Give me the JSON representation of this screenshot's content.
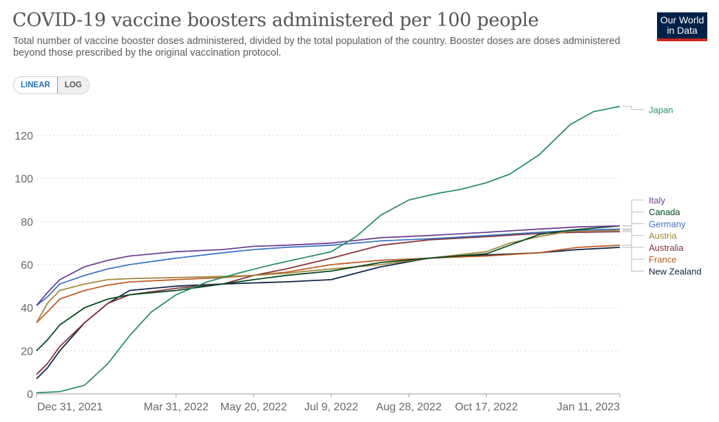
{
  "header": {
    "title": "COVID-19 vaccine boosters administered per 100 people",
    "subtitle": "Total number of vaccine booster doses administered, divided by the total population of the country. Booster doses are doses administered beyond those prescribed by the original vaccination protocol.",
    "logo_line1": "Our World",
    "logo_line2": "in Data"
  },
  "scale_toggle": {
    "linear_label": "LINEAR",
    "log_label": "LOG",
    "selected": "LINEAR"
  },
  "chart_data": {
    "type": "line",
    "title": "COVID-19 vaccine boosters administered per 100 people",
    "xlabel": "",
    "ylabel": "",
    "ylim": [
      0,
      135
    ],
    "xlim": [
      "2021-12-31",
      "2023-01-11"
    ],
    "y_ticks": [
      0,
      20,
      40,
      60,
      80,
      100,
      120
    ],
    "x_ticks": [
      {
        "date": "2021-12-31",
        "label": "Dec 31, 2021"
      },
      {
        "date": "2022-03-31",
        "label": "Mar 31, 2022"
      },
      {
        "date": "2022-05-20",
        "label": "May 20, 2022"
      },
      {
        "date": "2022-07-09",
        "label": "Jul 9, 2022"
      },
      {
        "date": "2022-08-28",
        "label": "Aug 28, 2022"
      },
      {
        "date": "2022-10-17",
        "label": "Oct 17, 2022"
      },
      {
        "date": "2023-01-11",
        "label": "Jan 11, 2023"
      }
    ],
    "grid": "horizontal dashed",
    "legend": "right, labels at line ends",
    "series": [
      {
        "name": "Japan",
        "color": "#2a8c6a",
        "label_y": 132,
        "x": [
          "2021-12-31",
          "2022-01-15",
          "2022-01-31",
          "2022-02-15",
          "2022-03-01",
          "2022-03-15",
          "2022-03-31",
          "2022-04-20",
          "2022-05-10",
          "2022-06-01",
          "2022-06-20",
          "2022-07-09",
          "2022-07-25",
          "2022-08-10",
          "2022-08-28",
          "2022-09-15",
          "2022-10-01",
          "2022-10-17",
          "2022-11-01",
          "2022-11-20",
          "2022-12-10",
          "2022-12-25",
          "2023-01-11"
        ],
        "y": [
          0.5,
          1,
          4,
          14,
          27,
          38,
          46,
          52,
          56,
          60,
          63,
          66,
          73,
          83,
          90,
          93,
          95,
          98,
          102,
          111,
          125,
          131,
          133.5
        ]
      },
      {
        "name": "Italy",
        "color": "#6d3e91",
        "label_y": 90,
        "x": [
          "2021-12-31",
          "2022-01-07",
          "2022-01-15",
          "2022-01-31",
          "2022-02-15",
          "2022-03-01",
          "2022-03-31",
          "2022-04-30",
          "2022-05-20",
          "2022-06-10",
          "2022-07-09",
          "2022-08-10",
          "2022-09-10",
          "2022-10-17",
          "2022-11-20",
          "2022-12-15",
          "2023-01-11"
        ],
        "y": [
          41,
          47,
          53,
          59,
          62,
          64,
          66,
          67,
          68.5,
          69,
          70,
          72.5,
          73.5,
          75,
          76.5,
          77.5,
          78
        ]
      },
      {
        "name": "Canada",
        "color": "#00491f",
        "label_y": 84.5,
        "x": [
          "2021-12-31",
          "2022-01-07",
          "2022-01-15",
          "2022-01-31",
          "2022-02-15",
          "2022-03-01",
          "2022-03-31",
          "2022-04-30",
          "2022-05-20",
          "2022-06-10",
          "2022-07-09",
          "2022-08-10",
          "2022-09-10",
          "2022-10-17",
          "2022-11-01",
          "2022-11-20",
          "2022-12-10",
          "2023-01-11"
        ],
        "y": [
          20,
          25,
          32,
          40,
          44,
          46,
          48,
          51,
          53,
          55,
          57,
          61,
          63,
          65,
          69,
          74,
          76,
          78
        ]
      },
      {
        "name": "Germany",
        "color": "#3a75c4",
        "label_y": 79,
        "x": [
          "2021-12-31",
          "2022-01-07",
          "2022-01-15",
          "2022-01-31",
          "2022-02-15",
          "2022-03-01",
          "2022-03-31",
          "2022-04-30",
          "2022-05-20",
          "2022-06-10",
          "2022-07-09",
          "2022-08-10",
          "2022-09-10",
          "2022-10-17",
          "2022-11-20",
          "2022-12-15",
          "2023-01-11"
        ],
        "y": [
          41,
          45,
          51,
          55,
          58,
          60,
          63,
          65.5,
          67,
          68,
          69,
          71,
          72,
          73.5,
          75,
          76,
          76.5
        ]
      },
      {
        "name": "Austria",
        "color": "#a2853b",
        "label_y": 73.5,
        "x": [
          "2021-12-31",
          "2022-01-07",
          "2022-01-15",
          "2022-01-31",
          "2022-02-15",
          "2022-03-01",
          "2022-03-31",
          "2022-04-30",
          "2022-05-20",
          "2022-06-10",
          "2022-07-09",
          "2022-08-10",
          "2022-09-10",
          "2022-10-17",
          "2022-11-01",
          "2022-11-20",
          "2022-12-10",
          "2023-01-11"
        ],
        "y": [
          33,
          42,
          48,
          51,
          53,
          53.5,
          54,
          54.5,
          55,
          56,
          58,
          60,
          63,
          66,
          70,
          73,
          75.5,
          76
        ]
      },
      {
        "name": "Australia",
        "color": "#883039",
        "label_y": 68,
        "x": [
          "2021-12-31",
          "2022-01-07",
          "2022-01-15",
          "2022-01-31",
          "2022-02-15",
          "2022-03-01",
          "2022-03-31",
          "2022-04-30",
          "2022-05-20",
          "2022-06-10",
          "2022-07-09",
          "2022-08-10",
          "2022-09-10",
          "2022-10-17",
          "2022-11-20",
          "2022-12-15",
          "2023-01-11"
        ],
        "y": [
          9,
          14,
          22,
          33,
          42,
          46,
          49,
          51,
          55,
          58,
          63,
          69,
          71.5,
          73,
          74.5,
          75,
          75.3
        ]
      },
      {
        "name": "France",
        "color": "#c15b24",
        "label_y": 62.5,
        "x": [
          "2021-12-31",
          "2022-01-07",
          "2022-01-15",
          "2022-01-31",
          "2022-02-15",
          "2022-03-01",
          "2022-03-31",
          "2022-04-30",
          "2022-05-20",
          "2022-06-10",
          "2022-07-09",
          "2022-08-10",
          "2022-09-10",
          "2022-10-17",
          "2022-11-20",
          "2022-12-15",
          "2023-01-11"
        ],
        "y": [
          33,
          38,
          44,
          48,
          50.5,
          52,
          53,
          54,
          55,
          56.5,
          60,
          62,
          63,
          64,
          65.5,
          68,
          69
        ]
      },
      {
        "name": "New Zealand",
        "color": "#0c2344",
        "label_y": 57,
        "x": [
          "2021-12-31",
          "2022-01-07",
          "2022-01-15",
          "2022-01-31",
          "2022-02-15",
          "2022-03-01",
          "2022-03-31",
          "2022-04-30",
          "2022-05-20",
          "2022-06-10",
          "2022-07-09",
          "2022-08-10",
          "2022-09-10",
          "2022-10-17",
          "2022-11-20",
          "2022-12-15",
          "2023-01-11"
        ],
        "y": [
          7,
          12,
          20,
          33,
          42,
          48,
          50,
          51,
          51.5,
          52,
          53,
          59,
          63,
          64.5,
          65.5,
          67,
          68
        ]
      }
    ]
  }
}
